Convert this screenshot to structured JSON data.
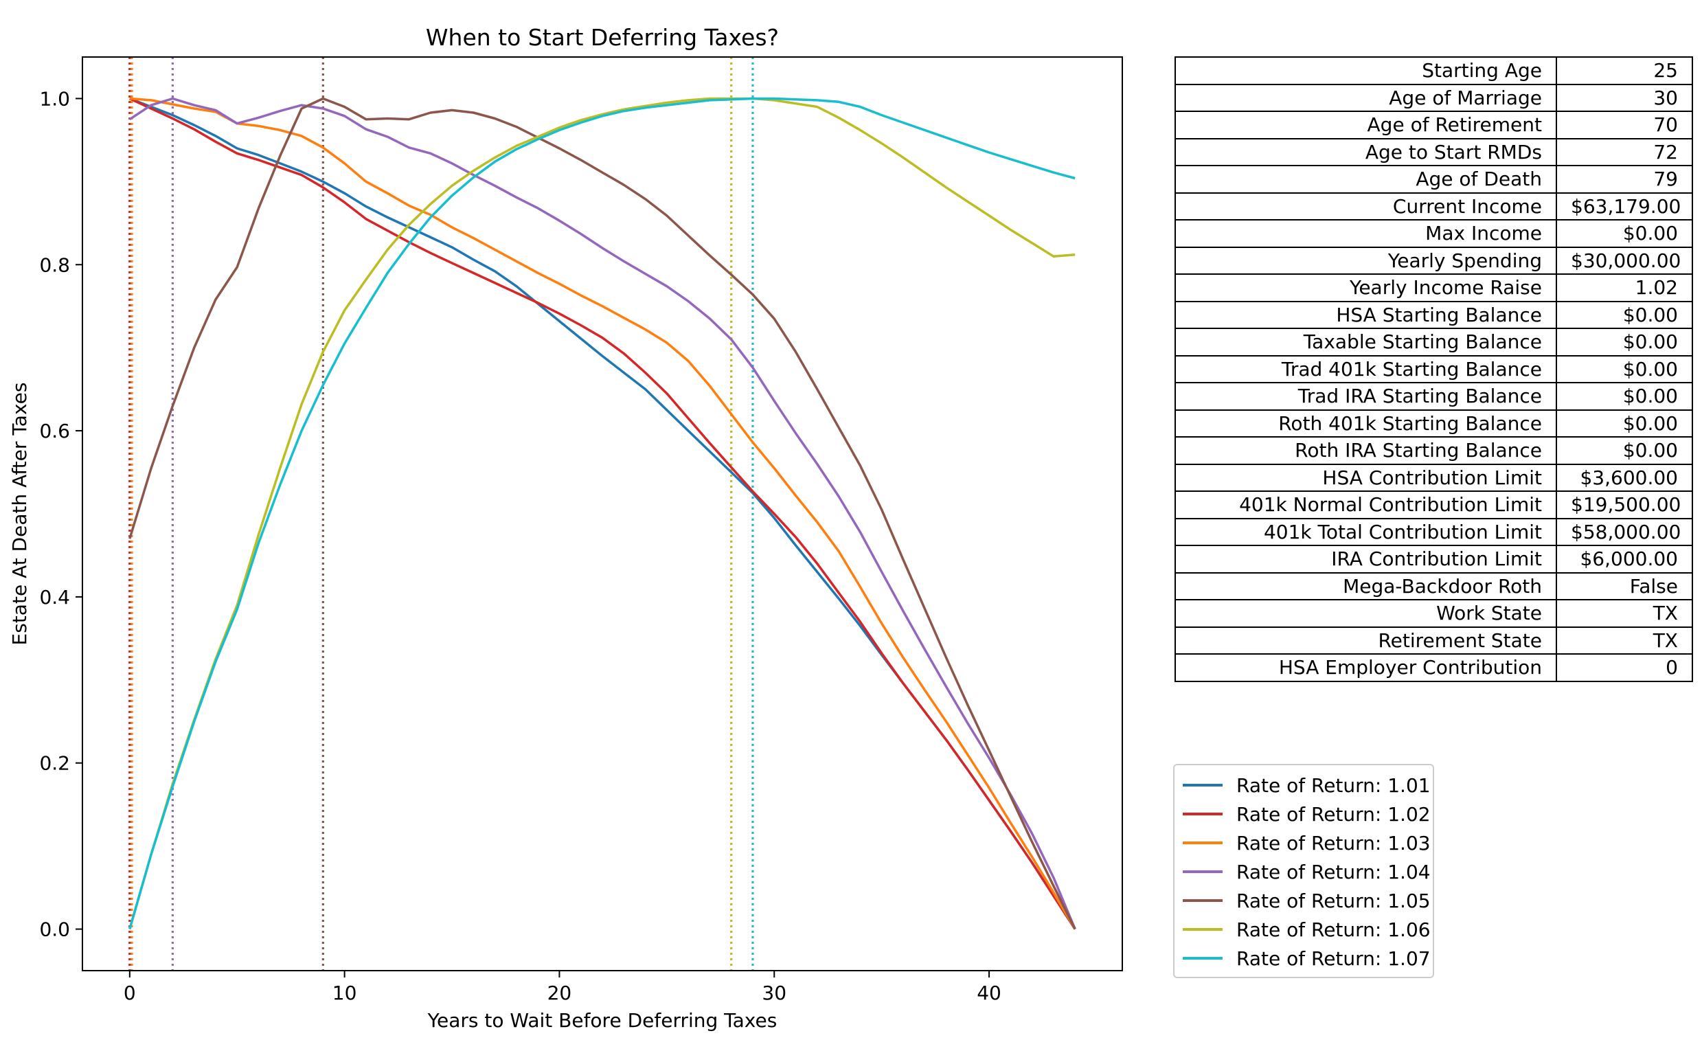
{
  "chart_data": {
    "type": "line",
    "title": "When to Start Deferring Taxes?",
    "xlabel": "Years to Wait Before Deferring Taxes",
    "ylabel": "Estate At Death After Taxes",
    "xlim": [
      -2.2,
      46.2
    ],
    "ylim": [
      -0.05,
      1.05
    ],
    "x_ticks": [
      0,
      10,
      20,
      30,
      40
    ],
    "y_ticks": [
      0.0,
      0.2,
      0.4,
      0.6,
      0.8,
      1.0
    ],
    "grid": false,
    "legend_position": "below-table",
    "series": [
      {
        "name": "Rate of Return: 1.01",
        "color": "#1f77b4",
        "optimal_x": 0,
        "x": [
          0,
          1,
          2,
          3,
          4,
          5,
          6,
          7,
          8,
          9,
          10,
          11,
          12,
          13,
          14,
          15,
          16,
          17,
          18,
          19,
          20,
          21,
          22,
          23,
          24,
          25,
          26,
          27,
          28,
          29,
          30,
          31,
          32,
          33,
          34,
          35,
          36,
          37,
          38,
          39,
          40,
          41,
          42,
          43,
          44
        ],
        "y": [
          1.0,
          0.99,
          0.98,
          0.968,
          0.955,
          0.94,
          0.932,
          0.922,
          0.912,
          0.9,
          0.886,
          0.87,
          0.857,
          0.845,
          0.833,
          0.821,
          0.806,
          0.792,
          0.774,
          0.753,
          0.732,
          0.711,
          0.69,
          0.67,
          0.65,
          0.625,
          0.6,
          0.575,
          0.55,
          0.525,
          0.495,
          0.462,
          0.43,
          0.398,
          0.365,
          0.33,
          0.296,
          0.262,
          0.228,
          0.192,
          0.155,
          0.118,
          0.08,
          0.04,
          0.0
        ]
      },
      {
        "name": "Rate of Return: 1.02",
        "color": "#d62728",
        "optimal_x": 0,
        "x": [
          0,
          1,
          2,
          3,
          4,
          5,
          6,
          7,
          8,
          9,
          10,
          11,
          12,
          13,
          14,
          15,
          16,
          17,
          18,
          19,
          20,
          21,
          22,
          23,
          24,
          25,
          26,
          27,
          28,
          29,
          30,
          31,
          32,
          33,
          34,
          35,
          36,
          37,
          38,
          39,
          40,
          41,
          42,
          43,
          44
        ],
        "y": [
          1.0,
          0.988,
          0.976,
          0.963,
          0.948,
          0.934,
          0.926,
          0.917,
          0.908,
          0.893,
          0.875,
          0.855,
          0.841,
          0.827,
          0.814,
          0.802,
          0.79,
          0.778,
          0.766,
          0.754,
          0.741,
          0.727,
          0.712,
          0.693,
          0.67,
          0.645,
          0.615,
          0.585,
          0.556,
          0.527,
          0.5,
          0.472,
          0.44,
          0.405,
          0.37,
          0.332,
          0.296,
          0.262,
          0.228,
          0.192,
          0.155,
          0.118,
          0.08,
          0.04,
          0.0
        ]
      },
      {
        "name": "Rate of Return: 1.03",
        "color": "#ff7f0e",
        "optimal_x": 0.1,
        "x": [
          0,
          1,
          2,
          3,
          4,
          5,
          6,
          7,
          8,
          9,
          10,
          11,
          12,
          13,
          14,
          15,
          16,
          17,
          18,
          19,
          20,
          21,
          22,
          23,
          24,
          25,
          26,
          27,
          28,
          29,
          30,
          31,
          32,
          33,
          34,
          35,
          36,
          37,
          38,
          39,
          40,
          41,
          42,
          43,
          44
        ],
        "y": [
          1.0,
          0.998,
          0.993,
          0.988,
          0.984,
          0.97,
          0.967,
          0.962,
          0.955,
          0.941,
          0.922,
          0.9,
          0.886,
          0.871,
          0.86,
          0.845,
          0.832,
          0.818,
          0.804,
          0.79,
          0.777,
          0.763,
          0.75,
          0.736,
          0.722,
          0.706,
          0.684,
          0.654,
          0.62,
          0.586,
          0.555,
          0.522,
          0.49,
          0.455,
          0.412,
          0.368,
          0.327,
          0.288,
          0.25,
          0.21,
          0.17,
          0.128,
          0.087,
          0.044,
          0.0
        ]
      },
      {
        "name": "Rate of Return: 1.04",
        "color": "#9467bd",
        "optimal_x": 2,
        "x": [
          0,
          1,
          2,
          3,
          4,
          5,
          6,
          7,
          8,
          9,
          10,
          11,
          12,
          13,
          14,
          15,
          16,
          17,
          18,
          19,
          20,
          21,
          22,
          23,
          24,
          25,
          26,
          27,
          28,
          29,
          30,
          31,
          32,
          33,
          34,
          35,
          36,
          37,
          38,
          39,
          40,
          41,
          42,
          43,
          44
        ],
        "y": [
          0.975,
          0.992,
          1.0,
          0.992,
          0.986,
          0.97,
          0.977,
          0.985,
          0.992,
          0.988,
          0.979,
          0.963,
          0.954,
          0.941,
          0.934,
          0.922,
          0.908,
          0.895,
          0.881,
          0.868,
          0.853,
          0.837,
          0.82,
          0.804,
          0.789,
          0.774,
          0.756,
          0.735,
          0.71,
          0.676,
          0.636,
          0.597,
          0.56,
          0.521,
          0.478,
          0.43,
          0.383,
          0.337,
          0.292,
          0.248,
          0.206,
          0.162,
          0.115,
          0.062,
          0.0
        ]
      },
      {
        "name": "Rate of Return: 1.05",
        "color": "#8c564b",
        "optimal_x": 9,
        "x": [
          0,
          1,
          2,
          3,
          4,
          5,
          6,
          7,
          8,
          9,
          10,
          11,
          12,
          13,
          14,
          15,
          16,
          17,
          18,
          19,
          20,
          21,
          22,
          23,
          24,
          25,
          26,
          27,
          28,
          29,
          30,
          31,
          32,
          33,
          34,
          35,
          36,
          37,
          38,
          39,
          40,
          41,
          42,
          43,
          44
        ],
        "y": [
          0.47,
          0.555,
          0.63,
          0.7,
          0.758,
          0.797,
          0.868,
          0.931,
          0.988,
          1.0,
          0.99,
          0.975,
          0.976,
          0.975,
          0.983,
          0.986,
          0.983,
          0.976,
          0.966,
          0.953,
          0.94,
          0.926,
          0.911,
          0.896,
          0.879,
          0.859,
          0.835,
          0.811,
          0.788,
          0.764,
          0.735,
          0.695,
          0.65,
          0.604,
          0.558,
          0.505,
          0.445,
          0.386,
          0.327,
          0.27,
          0.215,
          0.16,
          0.105,
          0.052,
          0.0
        ]
      },
      {
        "name": "Rate of Return: 1.06",
        "color": "#bcbd22",
        "optimal_x": 28,
        "x": [
          0,
          1,
          2,
          3,
          4,
          5,
          6,
          7,
          8,
          9,
          10,
          11,
          12,
          13,
          14,
          15,
          16,
          17,
          18,
          19,
          20,
          21,
          22,
          23,
          24,
          25,
          26,
          27,
          28,
          29,
          30,
          31,
          32,
          33,
          34,
          35,
          36,
          37,
          38,
          39,
          40,
          41,
          42,
          43,
          44
        ],
        "y": [
          0.0,
          0.09,
          0.175,
          0.252,
          0.325,
          0.39,
          0.475,
          0.555,
          0.632,
          0.695,
          0.745,
          0.782,
          0.818,
          0.848,
          0.873,
          0.895,
          0.913,
          0.929,
          0.943,
          0.954,
          0.965,
          0.974,
          0.981,
          0.987,
          0.991,
          0.995,
          0.998,
          1.0,
          1.0,
          1.0,
          0.998,
          0.994,
          0.99,
          0.977,
          0.962,
          0.946,
          0.929,
          0.911,
          0.893,
          0.876,
          0.859,
          0.842,
          0.826,
          0.81,
          0.812
        ]
      },
      {
        "name": "Rate of Return: 1.07",
        "color": "#17becf",
        "optimal_x": 29,
        "x": [
          0,
          1,
          2,
          3,
          4,
          5,
          6,
          7,
          8,
          9,
          10,
          11,
          12,
          13,
          14,
          15,
          16,
          17,
          18,
          19,
          20,
          21,
          22,
          23,
          24,
          25,
          26,
          27,
          28,
          29,
          30,
          31,
          32,
          33,
          34,
          35,
          36,
          37,
          38,
          39,
          40,
          41,
          42,
          43,
          44
        ],
        "y": [
          0.0,
          0.09,
          0.172,
          0.25,
          0.322,
          0.385,
          0.465,
          0.535,
          0.6,
          0.655,
          0.705,
          0.748,
          0.79,
          0.825,
          0.857,
          0.883,
          0.905,
          0.924,
          0.939,
          0.951,
          0.962,
          0.971,
          0.979,
          0.985,
          0.989,
          0.992,
          0.995,
          0.998,
          0.999,
          1.0,
          1.0,
          0.999,
          0.998,
          0.996,
          0.99,
          0.98,
          0.971,
          0.962,
          0.953,
          0.944,
          0.935,
          0.927,
          0.919,
          0.911,
          0.904
        ]
      }
    ]
  },
  "table": {
    "rows": [
      {
        "label": "Starting Age",
        "value": "25"
      },
      {
        "label": "Age of Marriage",
        "value": "30"
      },
      {
        "label": "Age of Retirement",
        "value": "70"
      },
      {
        "label": "Age to Start RMDs",
        "value": "72"
      },
      {
        "label": "Age of Death",
        "value": "79"
      },
      {
        "label": "Current Income",
        "value": "$63,179.00"
      },
      {
        "label": "Max Income",
        "value": "$0.00"
      },
      {
        "label": "Yearly Spending",
        "value": "$30,000.00"
      },
      {
        "label": "Yearly Income Raise",
        "value": "1.02"
      },
      {
        "label": "HSA Starting Balance",
        "value": "$0.00"
      },
      {
        "label": "Taxable Starting Balance",
        "value": "$0.00"
      },
      {
        "label": "Trad 401k Starting Balance",
        "value": "$0.00"
      },
      {
        "label": "Trad IRA Starting Balance",
        "value": "$0.00"
      },
      {
        "label": "Roth 401k Starting Balance",
        "value": "$0.00"
      },
      {
        "label": "Roth IRA Starting Balance",
        "value": "$0.00"
      },
      {
        "label": "HSA Contribution Limit",
        "value": "$3,600.00"
      },
      {
        "label": "401k Normal Contribution Limit",
        "value": "$19,500.00"
      },
      {
        "label": "401k Total Contribution Limit",
        "value": "$58,000.00"
      },
      {
        "label": "IRA Contribution Limit",
        "value": "$6,000.00"
      },
      {
        "label": "Mega-Backdoor Roth",
        "value": "False"
      },
      {
        "label": "Work State",
        "value": "TX"
      },
      {
        "label": "Retirement State",
        "value": "TX"
      },
      {
        "label": "HSA Employer Contribution",
        "value": "0"
      }
    ]
  }
}
